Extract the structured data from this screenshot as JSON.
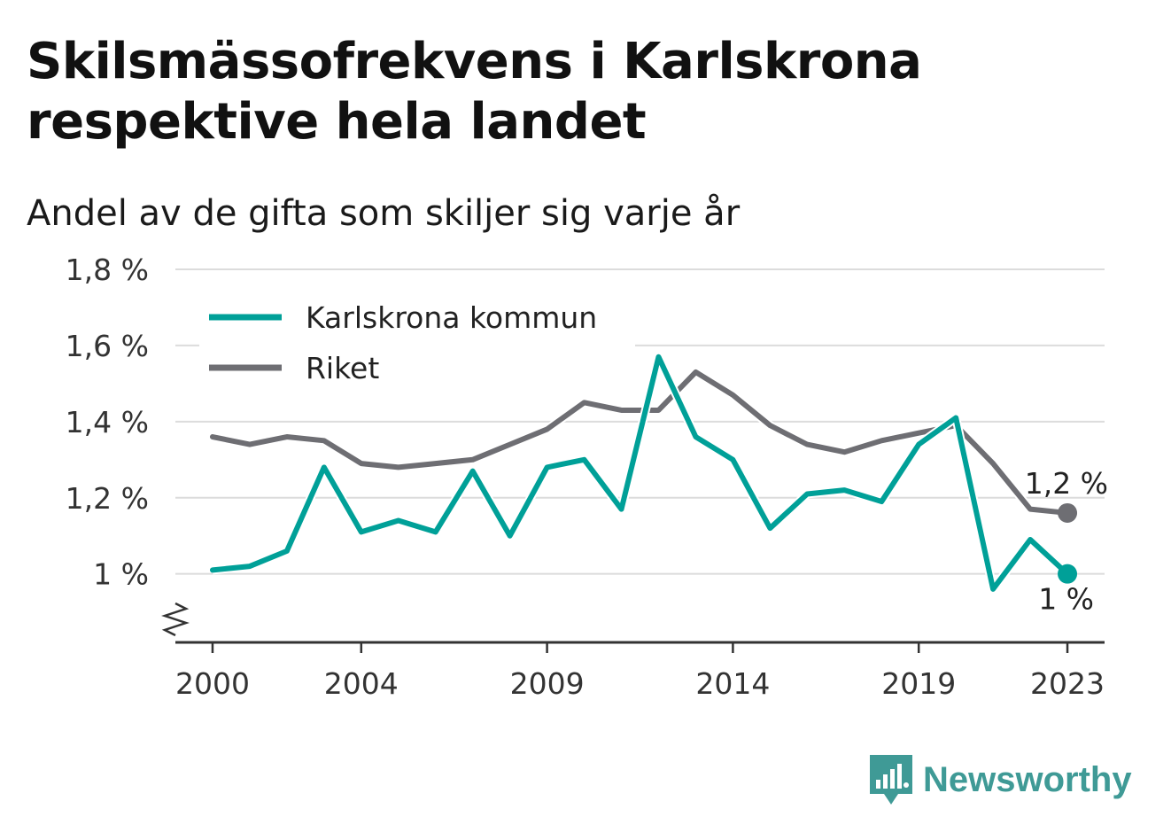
{
  "header": {
    "title": "Skilsmässofrekvens i Karlskrona respektive hela landet",
    "subtitle": "Andel av de gifta som skiljer sig varje år"
  },
  "brand": {
    "name": "Newsworthy",
    "icon": "newsworthy-logo-icon",
    "color": "#3f9a96"
  },
  "chart_data": {
    "type": "line",
    "title": "Skilsmässofrekvens i Karlskrona respektive hela landet",
    "subtitle": "Andel av de gifta som skiljer sig varje år",
    "xlabel": "",
    "ylabel": "",
    "x": [
      2000,
      2001,
      2002,
      2003,
      2004,
      2005,
      2006,
      2007,
      2008,
      2009,
      2010,
      2011,
      2012,
      2013,
      2014,
      2015,
      2016,
      2017,
      2018,
      2019,
      2020,
      2021,
      2022,
      2023
    ],
    "x_ticks": [
      "2000",
      "2004",
      "2009",
      "2014",
      "2019",
      "2023"
    ],
    "y_ticks": [
      "1 %",
      "1,2 %",
      "1,4 %",
      "1,6 %",
      "1,8 %"
    ],
    "y_tick_values": [
      1.0,
      1.2,
      1.4,
      1.6,
      1.8
    ],
    "ylim": [
      0.82,
      1.8
    ],
    "xlim": [
      1999,
      2024
    ],
    "y_axis_break": true,
    "grid": true,
    "legend_position": "top-left",
    "series": [
      {
        "name": "Karlskrona kommun",
        "color": "#00a098",
        "values": [
          1.01,
          1.02,
          1.06,
          1.28,
          1.11,
          1.14,
          1.11,
          1.27,
          1.1,
          1.28,
          1.3,
          1.17,
          1.57,
          1.36,
          1.3,
          1.12,
          1.21,
          1.22,
          1.19,
          1.34,
          1.41,
          0.96,
          1.09,
          1.0
        ],
        "end_label": "1 %"
      },
      {
        "name": "Riket",
        "color": "#6e6e73",
        "values": [
          1.36,
          1.34,
          1.36,
          1.35,
          1.29,
          1.28,
          1.29,
          1.3,
          1.34,
          1.38,
          1.45,
          1.43,
          1.43,
          1.53,
          1.47,
          1.39,
          1.34,
          1.32,
          1.35,
          1.37,
          1.39,
          1.29,
          1.17,
          1.16
        ],
        "end_label": "1,2 %"
      }
    ]
  }
}
